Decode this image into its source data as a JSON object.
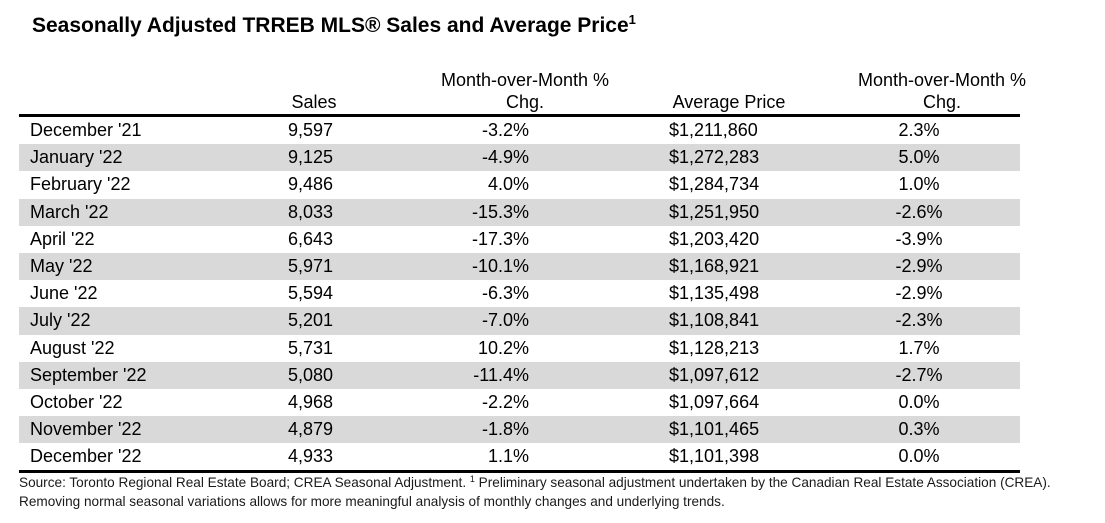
{
  "document": {
    "title": "Seasonally Adjusted TRREB MLS® Sales and Average Price",
    "title_superscript": "1",
    "shade_color": "#d9d9d9"
  },
  "table": {
    "headers": {
      "month": "",
      "sales": "Sales",
      "mom_sales_line1": "Month-over-Month %",
      "mom_sales_line2": "Chg.",
      "avg_price": "Average Price",
      "mom_price_line1": "Month-over-Month %",
      "mom_price_line2": "Chg."
    },
    "rows": [
      {
        "month": "December '21",
        "sales": "9,597",
        "mom_sales": "-3.2%",
        "avg_price": "$1,211,860",
        "mom_price": "2.3%"
      },
      {
        "month": "January '22",
        "sales": "9,125",
        "mom_sales": "-4.9%",
        "avg_price": "$1,272,283",
        "mom_price": "5.0%"
      },
      {
        "month": "February '22",
        "sales": "9,486",
        "mom_sales": "4.0%",
        "avg_price": "$1,284,734",
        "mom_price": "1.0%"
      },
      {
        "month": "March '22",
        "sales": "8,033",
        "mom_sales": "-15.3%",
        "avg_price": "$1,251,950",
        "mom_price": "-2.6%"
      },
      {
        "month": "April '22",
        "sales": "6,643",
        "mom_sales": "-17.3%",
        "avg_price": "$1,203,420",
        "mom_price": "-3.9%"
      },
      {
        "month": "May '22",
        "sales": "5,971",
        "mom_sales": "-10.1%",
        "avg_price": "$1,168,921",
        "mom_price": "-2.9%"
      },
      {
        "month": "June '22",
        "sales": "5,594",
        "mom_sales": "-6.3%",
        "avg_price": "$1,135,498",
        "mom_price": "-2.9%"
      },
      {
        "month": "July '22",
        "sales": "5,201",
        "mom_sales": "-7.0%",
        "avg_price": "$1,108,841",
        "mom_price": "-2.3%"
      },
      {
        "month": "August '22",
        "sales": "5,731",
        "mom_sales": "10.2%",
        "avg_price": "$1,128,213",
        "mom_price": "1.7%"
      },
      {
        "month": "September '22",
        "sales": "5,080",
        "mom_sales": "-11.4%",
        "avg_price": "$1,097,612",
        "mom_price": "-2.7%"
      },
      {
        "month": "October '22",
        "sales": "4,968",
        "mom_sales": "-2.2%",
        "avg_price": "$1,097,664",
        "mom_price": "0.0%"
      },
      {
        "month": "November '22",
        "sales": "4,879",
        "mom_sales": "-1.8%",
        "avg_price": "$1,101,465",
        "mom_price": "0.3%"
      },
      {
        "month": "December '22",
        "sales": "4,933",
        "mom_sales": "1.1%",
        "avg_price": "$1,101,398",
        "mom_price": "0.0%"
      }
    ]
  },
  "footnote": {
    "source": "Source: Toronto Regional Real Estate Board; CREA Seasonal Adjustment.",
    "marker": "1",
    "note": "Preliminary seasonal adjustment undertaken by the Canadian Real Estate Association (CREA).  Removing normal seasonal variations allows for more meaningful analysis of monthly changes and underlying trends."
  }
}
